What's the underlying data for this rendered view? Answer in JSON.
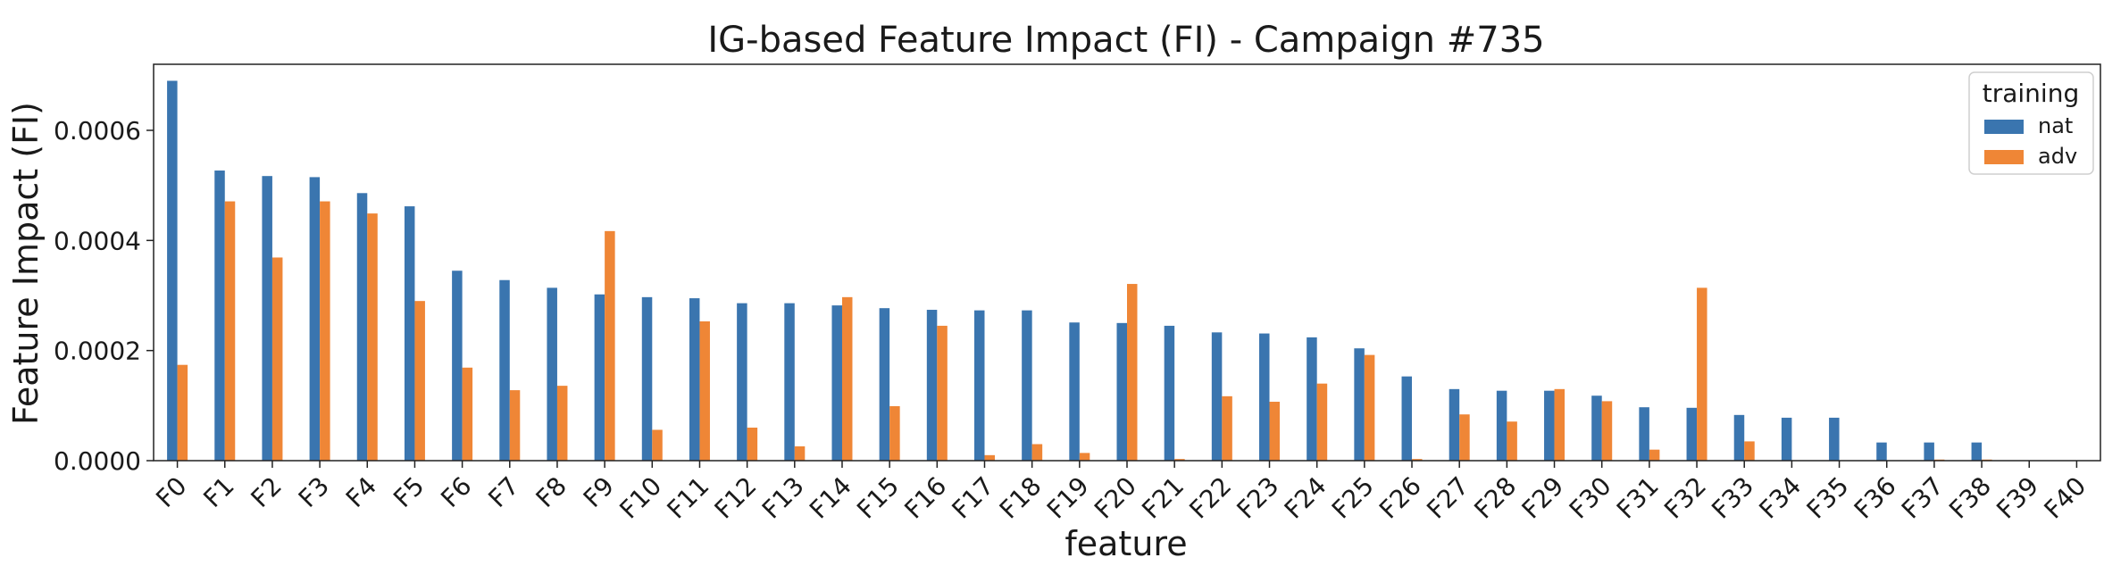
{
  "chart_data": {
    "type": "bar",
    "title": "IG-based Feature Impact (FI) - Campaign #735",
    "xlabel": "feature",
    "ylabel": "Feature Impact (FI)",
    "ylim": [
      0,
      0.00072
    ],
    "yticks": [
      "0.0000",
      "0.0002",
      "0.0004",
      "0.0006"
    ],
    "ytick_values": [
      0,
      0.0002,
      0.0004,
      0.0006
    ],
    "grid": false,
    "legend": {
      "title": "training",
      "placement": "top-right"
    },
    "categories": [
      "F0",
      "F1",
      "F2",
      "F3",
      "F4",
      "F5",
      "F6",
      "F7",
      "F8",
      "F9",
      "F10",
      "F11",
      "F12",
      "F13",
      "F14",
      "F15",
      "F16",
      "F17",
      "F18",
      "F19",
      "F20",
      "F21",
      "F22",
      "F23",
      "F24",
      "F25",
      "F26",
      "F27",
      "F28",
      "F29",
      "F30",
      "F31",
      "F32",
      "F33",
      "F34",
      "F35",
      "F36",
      "F37",
      "F38",
      "F39",
      "F40"
    ],
    "series": [
      {
        "name": "nat",
        "color": "#3a75af",
        "values": [
          0.00069,
          0.000527,
          0.000517,
          0.000515,
          0.000486,
          0.000462,
          0.000345,
          0.000328,
          0.000314,
          0.000302,
          0.000297,
          0.000295,
          0.000286,
          0.000286,
          0.000282,
          0.000277,
          0.000274,
          0.000273,
          0.000273,
          0.000251,
          0.00025,
          0.000245,
          0.000233,
          0.000231,
          0.000224,
          0.000204,
          0.000153,
          0.00013,
          0.000127,
          0.000127,
          0.000118,
          9.7e-05,
          9.6e-05,
          8.3e-05,
          7.8e-05,
          7.8e-05,
          3.3e-05,
          3.3e-05,
          3.3e-05,
          0,
          0
        ]
      },
      {
        "name": "adv",
        "color": "#ef8636",
        "values": [
          0.000174,
          0.000471,
          0.000369,
          0.000471,
          0.000449,
          0.00029,
          0.000169,
          0.000128,
          0.000136,
          0.000417,
          5.6e-05,
          0.000253,
          6e-05,
          2.6e-05,
          0.000297,
          9.9e-05,
          0.000245,
          1e-05,
          3e-05,
          1.4e-05,
          0.000321,
          3e-06,
          0.000117,
          0.000107,
          0.00014,
          0.000192,
          3e-06,
          8.4e-05,
          7.1e-05,
          0.00013,
          0.000108,
          2e-05,
          0.000314,
          3.5e-05,
          0,
          0,
          0,
          2e-06,
          2e-06,
          0,
          0
        ]
      }
    ]
  }
}
